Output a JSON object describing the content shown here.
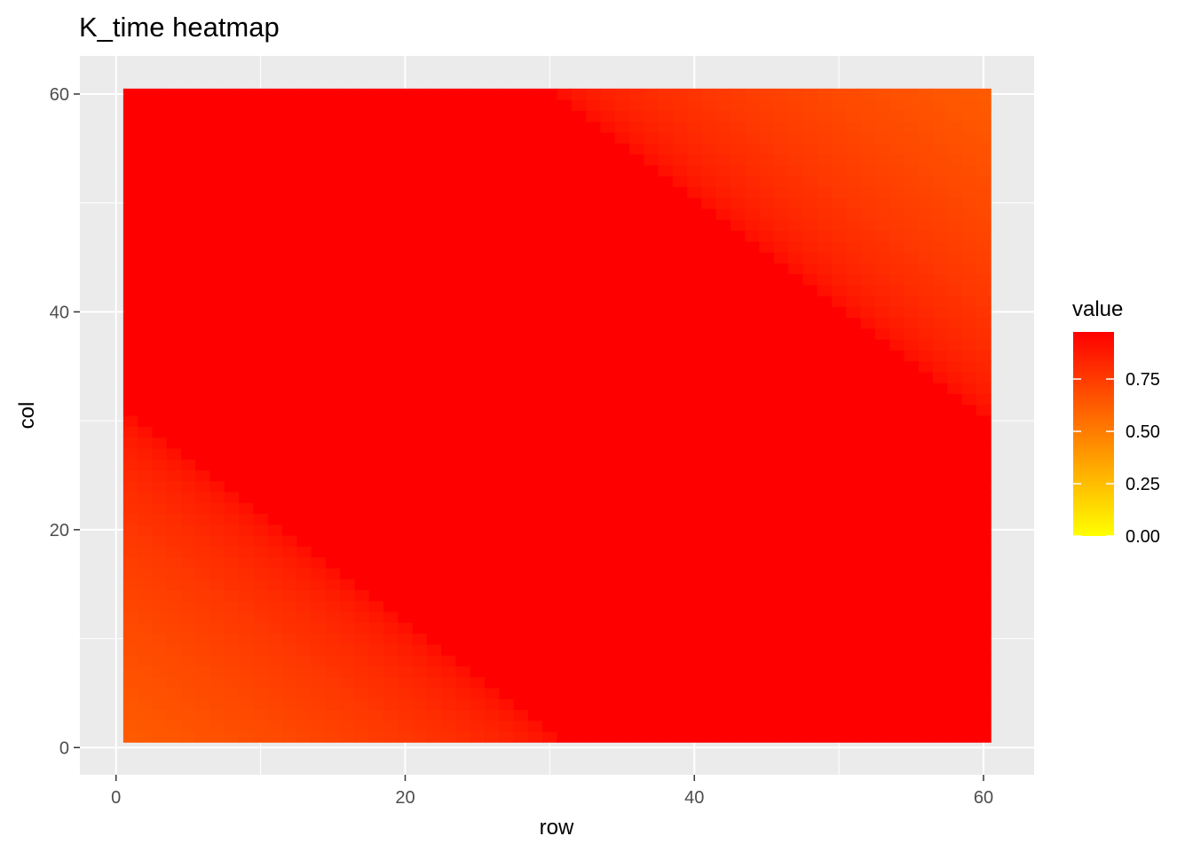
{
  "chart_data": {
    "type": "heatmap",
    "title": "K_time heatmap",
    "xlabel": "row",
    "ylabel": "col",
    "xlim": [
      -2.5,
      63.5
    ],
    "ylim": [
      -2.5,
      63.5
    ],
    "x_ticks": [
      0,
      20,
      40,
      60
    ],
    "y_ticks": [
      0,
      20,
      40,
      60
    ],
    "grid": true,
    "n_rows": 60,
    "n_cols": 60,
    "value_range": [
      0.0,
      0.975
    ],
    "description_of_values": "Value is ~1 (red) along a wide diagonal band where |(row+col) - 61| < about 29; it decreases toward the bottom-left corner (row+col small) and the top-right corner (row+col large), reaching ~0.65 (orange) at corners (1,1) and (60,60).",
    "band": {
      "center_sum": 61,
      "half_width": 29,
      "min_value": 0.63
    },
    "colorscale": {
      "low": "#ffff00",
      "high": "#ff0000"
    },
    "legend": {
      "title": "value",
      "position": "right",
      "ticks": [
        0.0,
        0.25,
        0.5,
        0.75
      ],
      "tick_labels": [
        "0.00",
        "0.25",
        "0.50",
        "0.75"
      ]
    }
  }
}
